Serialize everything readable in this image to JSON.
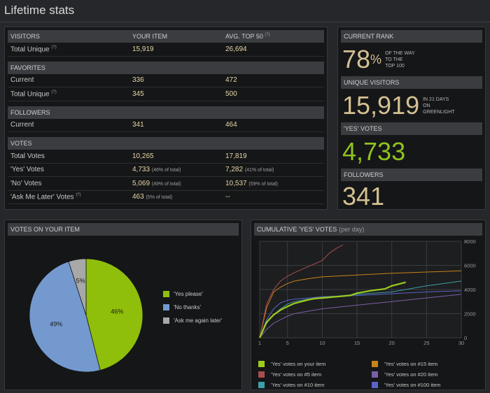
{
  "page": {
    "title": "Lifetime stats"
  },
  "table": {
    "col_your_item": "YOUR ITEM",
    "col_avg": "AVG. TOP 50",
    "help_mark": "(?)",
    "sections": [
      {
        "title": "VISITORS",
        "rows": [
          {
            "label": "Total Unique",
            "help": "(?)",
            "yours": "15,919",
            "avg": "26,694"
          }
        ]
      },
      {
        "title": "FAVORITES",
        "rows": [
          {
            "label": "Current",
            "yours": "336",
            "avg": "472"
          },
          {
            "label": "Total Unique",
            "help": "(?)",
            "yours": "345",
            "avg": "500"
          }
        ]
      },
      {
        "title": "FOLLOWERS",
        "rows": [
          {
            "label": "Current",
            "yours": "341",
            "avg": "464"
          }
        ]
      },
      {
        "title": "VOTES",
        "rows": [
          {
            "label": "Total Votes",
            "yours": "10,265",
            "avg": "17,819"
          },
          {
            "label": "'Yes' Votes",
            "yours": "4,733",
            "yours_note": "(46% of total)",
            "avg": "7,282",
            "avg_note": "(41% of total)"
          },
          {
            "label": "'No' Votes",
            "yours": "5,069",
            "yours_note": "(49% of total)",
            "avg": "10,537",
            "avg_note": "(59% of total)"
          },
          {
            "label": "'Ask Me Later' Votes",
            "help": "(?)",
            "yours": "463",
            "yours_note": "(5% of total)",
            "avg": "--"
          }
        ]
      }
    ]
  },
  "rank": {
    "current_rank": {
      "title": "CURRENT RANK",
      "value": "78",
      "unit": "%",
      "note": [
        "OF THE WAY",
        "TO THE",
        "TOP 100"
      ]
    },
    "unique_visitors": {
      "title": "UNIQUE VISITORS",
      "value": "15,919",
      "note": [
        "IN 21 DAYS",
        "ON",
        "GREENLIGHT"
      ]
    },
    "yes_votes": {
      "title": "'YES' VOTES",
      "value": "4,733"
    },
    "followers": {
      "title": "FOLLOWERS",
      "value": "341"
    }
  },
  "pie": {
    "title": "VOTES ON YOUR ITEM",
    "chart_data": {
      "type": "pie",
      "slices": [
        {
          "label": "'Yes please'",
          "value": 46,
          "display": "46%",
          "color": "#8fbf0a"
        },
        {
          "label": "'No thanks'",
          "value": 49,
          "display": "49%",
          "color": "#7399cf"
        },
        {
          "label": "'Ask me again later'",
          "value": 5,
          "display": "5%",
          "color": "#a8a8a8"
        }
      ]
    }
  },
  "line": {
    "title": "CUMULATIVE 'YES' VOTES",
    "subtitle": "(per day)",
    "chart_data": {
      "type": "line",
      "xlim": [
        1,
        30
      ],
      "ylim": [
        0,
        8000
      ],
      "xticks": [
        "1",
        "5",
        "10",
        "15",
        "20",
        "25",
        "30"
      ],
      "yticks": [
        "0",
        "2000",
        "4000",
        "6000",
        "8000"
      ],
      "grid": true,
      "series": [
        {
          "name": "'Yes' votes on your item",
          "color": "#9ccc1c",
          "width": 2.2,
          "points": [
            [
              1,
              0
            ],
            [
              2,
              1300
            ],
            [
              3,
              1900
            ],
            [
              4,
              2300
            ],
            [
              5,
              2600
            ],
            [
              6,
              2850
            ],
            [
              7,
              3000
            ],
            [
              8,
              3150
            ],
            [
              9,
              3250
            ],
            [
              10,
              3300
            ],
            [
              12,
              3400
            ],
            [
              14,
              3500
            ],
            [
              15,
              3700
            ],
            [
              17,
              3900
            ],
            [
              19,
              4050
            ],
            [
              20,
              4300
            ],
            [
              22,
              4600
            ]
          ]
        },
        {
          "name": "'Yes' votes on #5 item",
          "color": "#a84e50",
          "width": 1,
          "points": [
            [
              1,
              0
            ],
            [
              2,
              2800
            ],
            [
              3,
              4000
            ],
            [
              4,
              4700
            ],
            [
              5,
              5100
            ],
            [
              6,
              5400
            ],
            [
              8,
              5900
            ],
            [
              10,
              6400
            ],
            [
              11,
              7000
            ],
            [
              12,
              7400
            ],
            [
              13,
              7700
            ]
          ]
        },
        {
          "name": "'Yes' votes on #10 item",
          "color": "#3d9fa8",
          "width": 1,
          "points": [
            [
              1,
              0
            ],
            [
              2,
              1200
            ],
            [
              3,
              1900
            ],
            [
              4,
              2400
            ],
            [
              5,
              2800
            ],
            [
              6,
              3000
            ],
            [
              8,
              3200
            ],
            [
              10,
              3350
            ],
            [
              15,
              3600
            ],
            [
              20,
              3800
            ],
            [
              25,
              4300
            ],
            [
              30,
              4700
            ]
          ]
        },
        {
          "name": "'Yes' votes on #15 item",
          "color": "#c8831a",
          "width": 1,
          "points": [
            [
              1,
              0
            ],
            [
              2,
              2500
            ],
            [
              3,
              3800
            ],
            [
              4,
              4200
            ],
            [
              5,
              4500
            ],
            [
              6,
              4700
            ],
            [
              8,
              4900
            ],
            [
              10,
              5050
            ],
            [
              15,
              5200
            ],
            [
              20,
              5350
            ],
            [
              25,
              5450
            ],
            [
              30,
              5550
            ]
          ]
        },
        {
          "name": "'Yes' votes on #20 item",
          "color": "#7a5fa6",
          "width": 1,
          "points": [
            [
              1,
              0
            ],
            [
              2,
              700
            ],
            [
              3,
              1200
            ],
            [
              4,
              1500
            ],
            [
              5,
              1800
            ],
            [
              6,
              2000
            ],
            [
              8,
              2200
            ],
            [
              10,
              2400
            ],
            [
              15,
              2700
            ],
            [
              20,
              3000
            ],
            [
              25,
              3300
            ],
            [
              30,
              3600
            ]
          ]
        },
        {
          "name": "'Yes' votes on #100 item",
          "color": "#5b63c8",
          "width": 1,
          "points": [
            [
              1,
              0
            ],
            [
              2,
              1500
            ],
            [
              3,
              2400
            ],
            [
              4,
              2900
            ],
            [
              5,
              3100
            ],
            [
              6,
              3200
            ],
            [
              8,
              3300
            ],
            [
              10,
              3400
            ],
            [
              15,
              3500
            ],
            [
              20,
              3650
            ],
            [
              25,
              3800
            ],
            [
              30,
              3900
            ]
          ]
        }
      ]
    }
  }
}
